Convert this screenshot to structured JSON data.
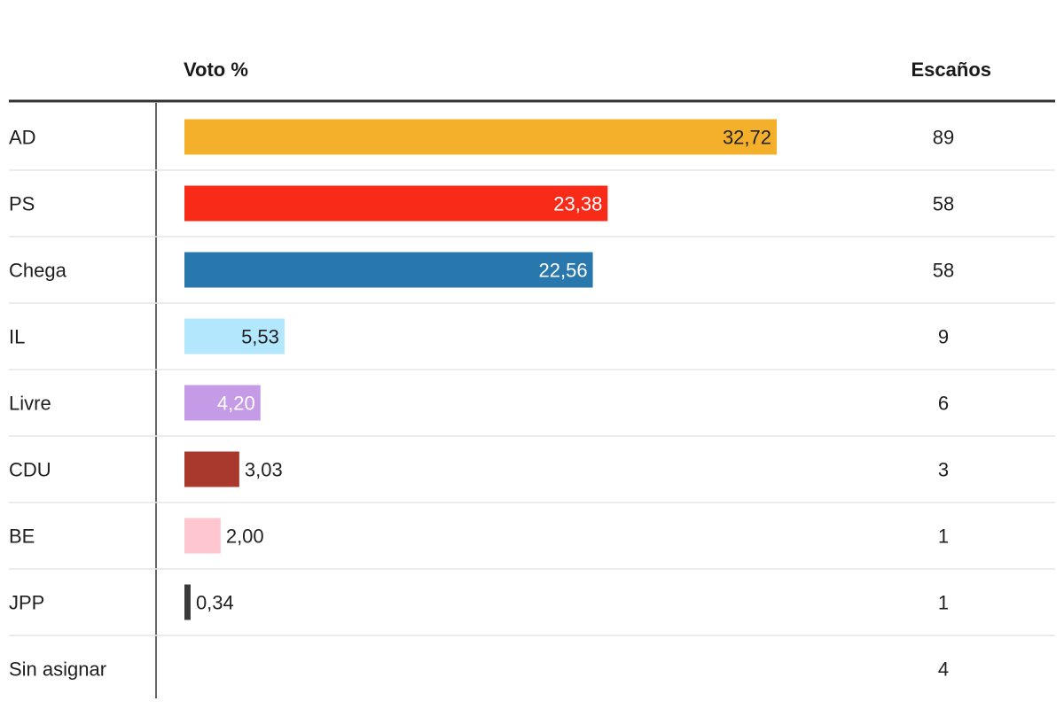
{
  "headers": {
    "vote": "Voto %",
    "seats": "Escaños"
  },
  "chart_data": {
    "type": "bar",
    "orientation": "horizontal",
    "categories": [
      "AD",
      "PS",
      "Chega",
      "IL",
      "Livre",
      "CDU",
      "BE",
      "JPP",
      "Sin asignar"
    ],
    "series": [
      {
        "values": [
          32.72,
          23.38,
          22.56,
          5.53,
          4.2,
          3.03,
          2.0,
          0.34,
          null
        ],
        "labels": [
          "32,72",
          "23,38",
          "22,56",
          "5,53",
          "4,20",
          "3,03",
          "2,00",
          "0,34",
          ""
        ],
        "colors": [
          "#f4b02a",
          "#f72b17",
          "#2877ad",
          "#b3e7fd",
          "#c59ae6",
          "#a8392c",
          "#fec6cf",
          "#3a3a3a",
          null
        ]
      }
    ],
    "seats": [
      "89",
      "58",
      "58",
      "9",
      "6",
      "3",
      "1",
      "1",
      "4"
    ],
    "xlim": [
      0,
      32.72
    ],
    "grid": false
  }
}
